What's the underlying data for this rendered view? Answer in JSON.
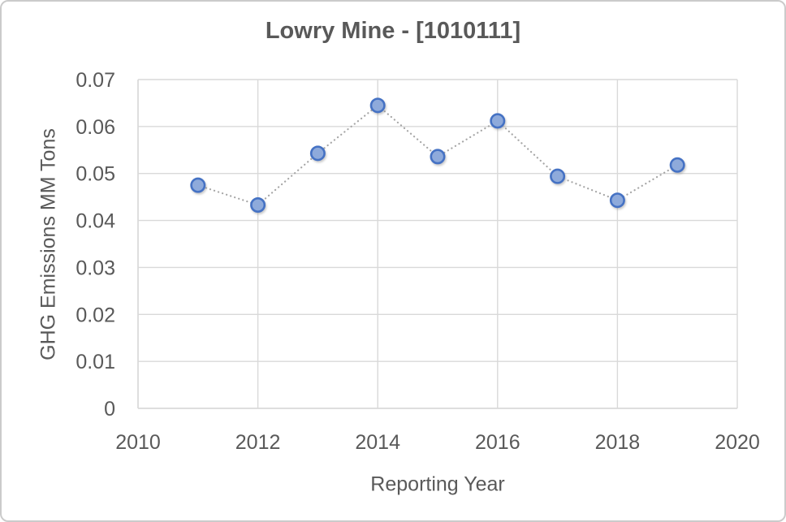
{
  "chart_data": {
    "type": "scatter",
    "title": "Lowry Mine - [1010111]",
    "xlabel": "Reporting Year",
    "ylabel": "GHG Emissions MM Tons",
    "x": [
      2011,
      2012,
      2013,
      2014,
      2015,
      2016,
      2017,
      2018,
      2019
    ],
    "values": [
      0.0475,
      0.0433,
      0.0543,
      0.0645,
      0.0536,
      0.0612,
      0.0494,
      0.0443,
      0.0518
    ],
    "series_name": "GHG Emissions",
    "xlim": [
      2010,
      2020
    ],
    "ylim": [
      0,
      0.07
    ],
    "x_tick_step": 2,
    "y_tick_step": 0.01,
    "x_tick_labels": [
      "2010",
      "2012",
      "2014",
      "2016",
      "2018",
      "2020"
    ],
    "y_tick_labels": [
      "0",
      "0.01",
      "0.02",
      "0.03",
      "0.04",
      "0.05",
      "0.06",
      "0.07"
    ],
    "grid": true,
    "legend": "none",
    "line_style": "dotted",
    "marker": "circle",
    "colors": {
      "marker_fill": "#8EAADB",
      "marker_border": "#4472C4",
      "connector_line": "#A6A6A6",
      "gridline": "#D9D9D9",
      "axis_line": "#D9D9D9",
      "text": "#595959",
      "frame_border": "#CBCBCB",
      "background": "#FFFFFF"
    }
  }
}
